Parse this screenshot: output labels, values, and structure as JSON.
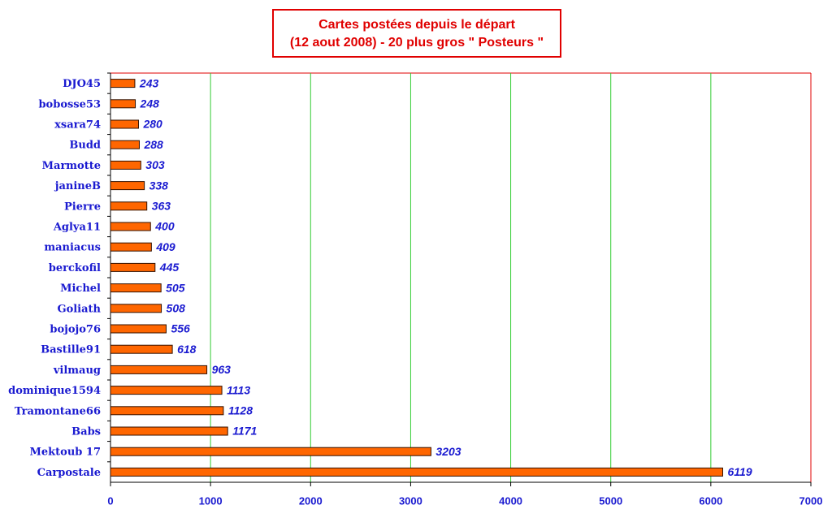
{
  "chart_data": {
    "type": "bar",
    "orientation": "horizontal",
    "title": "Cartes postées depuis le départ",
    "subtitle": "(12 aout 2008) - 20 plus gros \" Posteurs \"",
    "categories": [
      "DJO45",
      "bobosse53",
      "xsara74",
      "Budd",
      "Marmotte",
      "janineB",
      "Pierre",
      "Aglya11",
      "maniacus",
      "berckofil",
      "Michel",
      "Goliath",
      "bojojo76",
      "Bastille91",
      "vilmaug",
      "dominique1594",
      "Tramontane66",
      "Babs",
      "Mektoub 17",
      "Carpostale"
    ],
    "values": [
      243,
      248,
      280,
      288,
      303,
      338,
      363,
      400,
      409,
      445,
      505,
      508,
      556,
      618,
      963,
      1113,
      1128,
      1171,
      3203,
      6119
    ],
    "color": "#ff6600",
    "xlim": [
      0,
      7000
    ],
    "xticks": [
      0,
      1000,
      2000,
      3000,
      4000,
      5000,
      6000,
      7000
    ],
    "grid": true
  }
}
